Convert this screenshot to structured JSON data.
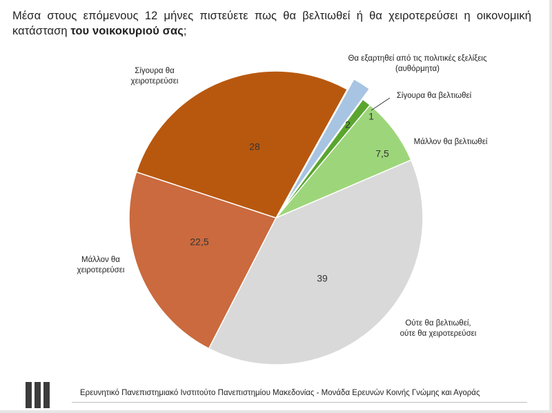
{
  "question": {
    "text": "Μέσα στους επόμενους 12 μήνες πιστεύετε πως θα βελτιωθεί ή θα χειροτερεύσει η οικονομική κατάσταση ",
    "bold": "του νοικοκυριού σας",
    "suffix": ";"
  },
  "chart_data": {
    "type": "pie",
    "slices": [
      {
        "label": "Θα εξαρτηθεί από τις πολιτικές εξελίξεις (αυθόρμητα)",
        "label_lines": [
          "Θα εξαρτηθεί από τις πολιτικές εξελίξεις",
          "(αυθόρμητα)"
        ],
        "value": 2,
        "value_text": "2",
        "color": "#a7c4e2",
        "exploded": true
      },
      {
        "label": "Σίγουρα θα βελτιωθεί",
        "label_lines": [
          "Σίγουρα θα βελτιωθεί"
        ],
        "value": 1,
        "value_text": "1",
        "color": "#5aa52f",
        "exploded": false
      },
      {
        "label": "Μάλλον θα βελτιωθεί",
        "label_lines": [
          "Μάλλον θα βελτιωθεί"
        ],
        "value": 7.5,
        "value_text": "7,5",
        "color": "#9dd67a",
        "exploded": false
      },
      {
        "label": "Ούτε θα βελτιωθεί, ούτε θα χειροτερεύσει",
        "label_lines": [
          "Ούτε θα βελτιωθεί,",
          "ούτε θα χειροτερεύσει"
        ],
        "value": 39,
        "value_text": "39",
        "color": "#d9d9d9",
        "exploded": false
      },
      {
        "label": "Μάλλον θα χειροτερεύσει",
        "label_lines": [
          "Μάλλον θα",
          "χειροτερεύσει"
        ],
        "value": 22.5,
        "value_text": "22,5",
        "color": "#ca6a3e",
        "exploded": false
      },
      {
        "label": "Σίγουρα θα χειροτερεύσει",
        "label_lines": [
          "Σίγουρα θα",
          "χειροτερεύσει"
        ],
        "value": 28,
        "value_text": "28",
        "color": "#b8580f",
        "exploded": false
      }
    ],
    "title": "",
    "legend": "none"
  },
  "footer": {
    "text": "Ερευνητικό Πανεπιστημιακό Ινστιτούτο Πανεπιστημίου Μακεδονίας - Μονάδα Ερευνών Κοινής Γνώμης και Αγοράς"
  }
}
